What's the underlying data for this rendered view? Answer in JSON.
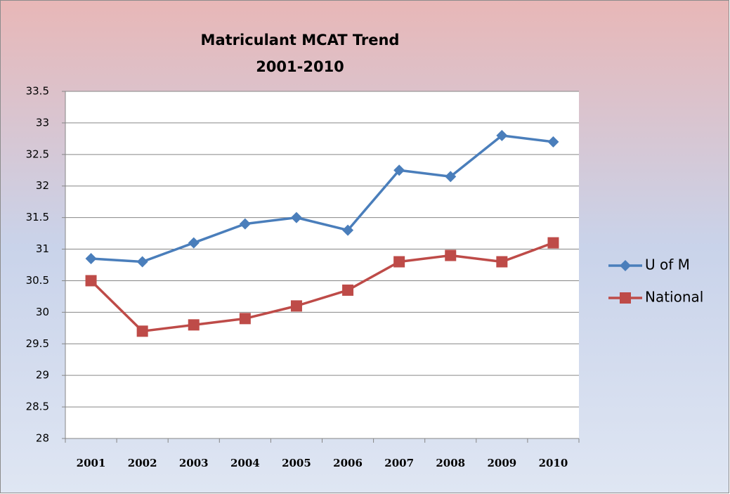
{
  "chart_data": {
    "type": "line",
    "title": "Matriculant MCAT Trend",
    "subtitle": "2001-2010",
    "categories": [
      "2001",
      "2002",
      "2003",
      "2004",
      "2005",
      "2006",
      "2007",
      "2008",
      "2009",
      "2010"
    ],
    "series": [
      {
        "name": "U of M",
        "color": "#4a7ebb",
        "marker": "diamond",
        "values": [
          30.85,
          30.8,
          31.1,
          31.4,
          31.5,
          31.3,
          32.25,
          32.15,
          32.8,
          32.7
        ]
      },
      {
        "name": "National",
        "color": "#be4b48",
        "marker": "square",
        "values": [
          30.5,
          29.7,
          29.8,
          29.9,
          30.1,
          30.35,
          30.8,
          30.9,
          30.8,
          31.1
        ]
      }
    ],
    "ylim": [
      28,
      33.5
    ],
    "yticks": [
      28,
      28.5,
      29,
      29.5,
      30,
      30.5,
      31,
      31.5,
      32,
      32.5,
      33,
      33.5
    ],
    "grid": true,
    "legend": "right"
  }
}
